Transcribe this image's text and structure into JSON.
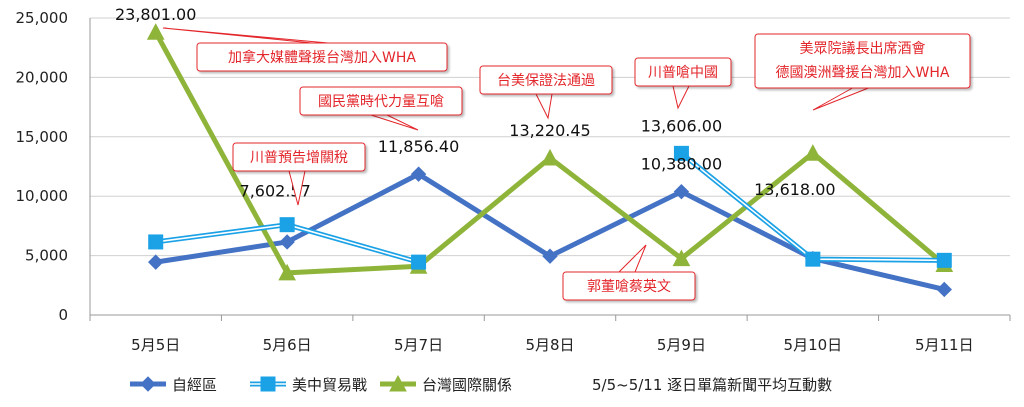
{
  "chart_data": {
    "type": "line",
    "title": "5/5~5/11 逐日單篇新聞平均互動數",
    "xlabel": "",
    "ylabel": "",
    "categories": [
      "5月5日",
      "5月6日",
      "5月7日",
      "5月8日",
      "5月9日",
      "5月10日",
      "5月11日"
    ],
    "ylim": [
      0,
      25000
    ],
    "yticks": [
      "0",
      "5,000",
      "10,000",
      "15,000",
      "20,000",
      "25,000"
    ],
    "grid": true,
    "legend_position": "bottom",
    "series": [
      {
        "name": "自經區",
        "color": "#4472c4",
        "marker": "diamond",
        "values": [
          4450,
          6150,
          11856.4,
          4950,
          10380.0,
          4750,
          2150
        ]
      },
      {
        "name": "美中貿易戰",
        "color": "#1aa1e6",
        "marker": "square",
        "values": [
          6150,
          7602.57,
          4450,
          null,
          13606.0,
          4700,
          4600
        ]
      },
      {
        "name": "台灣國際關係",
        "color": "#8fb43a",
        "marker": "triangle",
        "values": [
          23801.0,
          3550,
          4100,
          13220.45,
          4750,
          13618.0,
          4250
        ]
      }
    ],
    "data_labels": [
      {
        "text": "23,801.00",
        "category": 0,
        "value": 23801.0
      },
      {
        "text": "7,602.57",
        "category": 1,
        "value": 7602.57
      },
      {
        "text": "11,856.40",
        "category": 2,
        "value": 11856.4
      },
      {
        "text": "13,220.45",
        "category": 3,
        "value": 13220.45
      },
      {
        "text": "13,606.00",
        "category": 4,
        "value": 13606.0
      },
      {
        "text": "10,380.00",
        "category": 4,
        "value": 10380.0
      },
      {
        "text": "13,618.00",
        "category": 5,
        "value": 13618.0
      }
    ],
    "annotations": [
      {
        "lines": [
          "加拿大媒體聲援台灣加入WHA"
        ]
      },
      {
        "lines": [
          "川普預告增關稅"
        ]
      },
      {
        "lines": [
          "國民黨時代力量互嗆"
        ]
      },
      {
        "lines": [
          "台美保證法通過"
        ]
      },
      {
        "lines": [
          "川普嗆中國"
        ]
      },
      {
        "lines": [
          "郭董嗆蔡英文"
        ]
      },
      {
        "lines": [
          "美眾院議長出席酒會",
          "德國澳洲聲援台灣加入WHA"
        ]
      }
    ]
  }
}
